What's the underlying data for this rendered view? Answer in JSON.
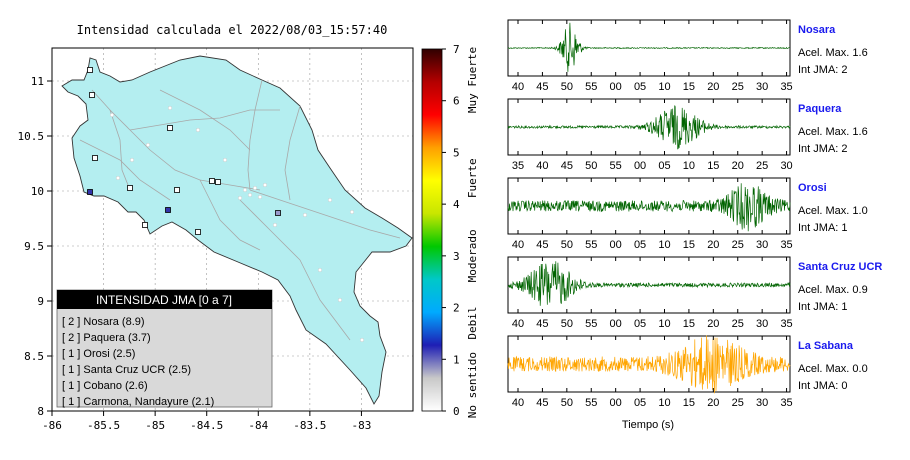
{
  "map": {
    "title": "Intensidad calculada el 2022/08/03_15:57:40",
    "xticks": [
      "-86",
      "-85.5",
      "-85",
      "-84.5",
      "-84",
      "-83.5",
      "-83"
    ],
    "yticks": [
      "8",
      "8.5",
      "9",
      "9.5",
      "10",
      "10.5",
      "11"
    ],
    "xlim": [
      -86.0,
      -82.5
    ],
    "ylim": [
      8.0,
      11.3
    ],
    "land_color": "#b4eef0",
    "legend": {
      "title": "INTENSIDAD JMA [0 a 7]",
      "items": [
        "[ 2 ]  Nosara (8.9)",
        "[ 2 ]  Paquera (3.7)",
        "[ 1 ]  Orosi (2.5)",
        "[ 1 ]  Santa Cruz UCR (2.5)",
        "[ 1 ]  Cobano (2.6)",
        "[ 1 ]  Carmona, Nandayure (2.1)"
      ]
    }
  },
  "colorbar": {
    "ticks": [
      "0",
      "1",
      "2",
      "3",
      "4",
      "5",
      "6",
      "7"
    ],
    "labels": [
      "No sentido",
      "Debil",
      "Moderado",
      "Fuerte",
      "Muy Fuerte"
    ],
    "stops": [
      "#ffffff",
      "#c8c8c8",
      "#1e1eb4",
      "#00aaff",
      "#00c8c8",
      "#00c800",
      "#c8e600",
      "#ffff00",
      "#ffa000",
      "#ff0000",
      "#b40000",
      "#300000"
    ]
  },
  "chart_data": {
    "type": "line",
    "xlabel": "Tiempo (s)",
    "series": [
      {
        "name": "Nosara",
        "acel_label": "Acel. Max. 1.6",
        "int_label": "Int JMA: 2",
        "color": "#006400",
        "xticks": [
          "40",
          "45",
          "50",
          "55",
          "00",
          "05",
          "10",
          "15",
          "20",
          "25",
          "30",
          "35"
        ],
        "burst_center": 0.22,
        "burst_width": 0.03,
        "amplitude": 1.0,
        "base": 0.02
      },
      {
        "name": "Paquera",
        "acel_label": "Acel. Max. 1.6",
        "int_label": "Int JMA: 2",
        "color": "#006400",
        "xticks": [
          "35",
          "40",
          "45",
          "50",
          "55",
          "00",
          "05",
          "10",
          "15",
          "20",
          "25",
          "30"
        ],
        "burst_center": 0.6,
        "burst_width": 0.08,
        "amplitude": 0.85,
        "base": 0.05
      },
      {
        "name": "Orosi",
        "acel_label": "Acel. Max. 1.0",
        "int_label": "Int JMA: 1",
        "color": "#006400",
        "xticks": [
          "40",
          "45",
          "50",
          "55",
          "00",
          "05",
          "10",
          "15",
          "20",
          "25",
          "30",
          "35"
        ],
        "burst_center": 0.85,
        "burst_width": 0.07,
        "amplitude": 0.8,
        "base": 0.22
      },
      {
        "name": "Santa Cruz UCR",
        "acel_label": "Acel. Max. 0.9",
        "int_label": "Int JMA: 1",
        "color": "#006400",
        "xticks": [
          "40",
          "45",
          "50",
          "55",
          "00",
          "05",
          "10",
          "15",
          "20",
          "25",
          "30",
          "35"
        ],
        "burst_center": 0.15,
        "burst_width": 0.08,
        "amplitude": 0.95,
        "base": 0.08
      },
      {
        "name": "La Sabana",
        "acel_label": "Acel. Max. 0.0",
        "int_label": "Int JMA: 0",
        "color": "#ffa500",
        "xticks": [
          "40",
          "45",
          "50",
          "55",
          "00",
          "05",
          "10",
          "15",
          "20",
          "25",
          "30",
          "35"
        ],
        "burst_center": 0.72,
        "burst_width": 0.12,
        "amplitude": 0.9,
        "base": 0.3
      }
    ]
  }
}
